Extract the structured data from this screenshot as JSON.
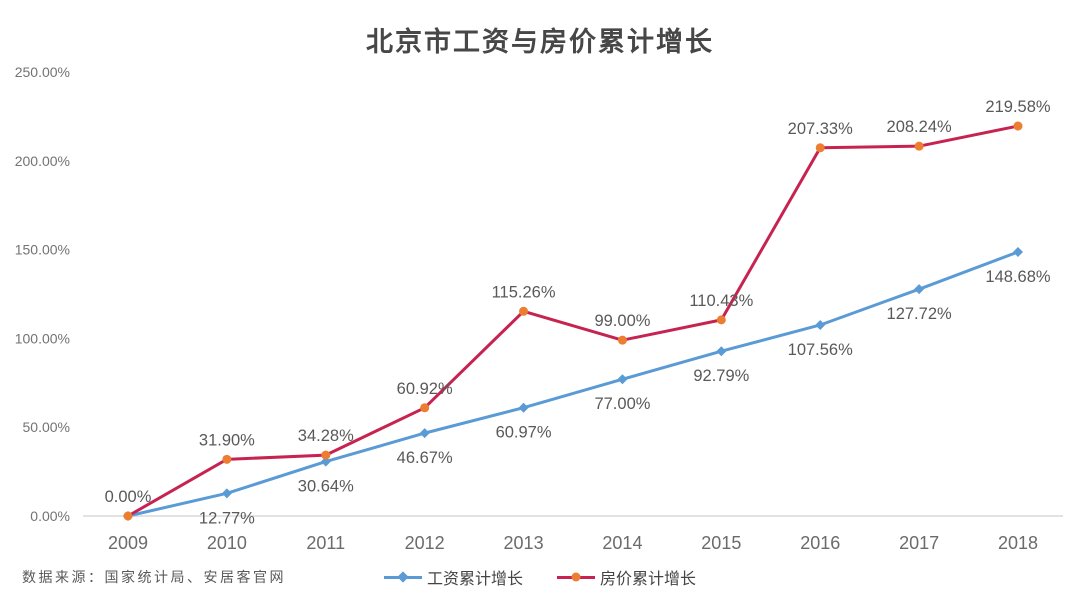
{
  "chart_data": {
    "type": "line",
    "title": "北京市工资与房价累计增长",
    "categories": [
      "2009",
      "2010",
      "2011",
      "2012",
      "2013",
      "2014",
      "2015",
      "2016",
      "2017",
      "2018"
    ],
    "series": [
      {
        "id": "wage",
        "name": "工资累计增长",
        "color": "#5B9BD5",
        "marker": "diamond",
        "label_side": "below",
        "values": [
          0,
          12.77,
          30.64,
          46.67,
          60.97,
          77.0,
          92.79,
          107.56,
          127.72,
          148.68
        ],
        "labels": [
          "",
          "12.77%",
          "30.64%",
          "46.67%",
          "60.97%",
          "77.00%",
          "92.79%",
          "107.56%",
          "127.72%",
          "148.68%"
        ]
      },
      {
        "id": "house-price",
        "name": "房价累计增长",
        "color": "#C72350",
        "marker": "circle",
        "marker_color": "#ED7D31",
        "label_side": "above",
        "values": [
          0,
          31.9,
          34.28,
          60.92,
          115.26,
          99.0,
          110.43,
          207.33,
          208.24,
          219.58
        ],
        "labels": [
          "0.00%",
          "31.90%",
          "34.28%",
          "60.92%",
          "115.26%",
          "99.00%",
          "110.43%",
          "207.33%",
          "208.24%",
          "219.58%"
        ]
      }
    ],
    "y_ticks": [
      "0.00%",
      "50.00%",
      "100.00%",
      "150.00%",
      "200.00%",
      "250.00%"
    ],
    "ylim": [
      0,
      250
    ],
    "grid": false,
    "legend_position": "bottom-center"
  },
  "source_note": "数据来源：国家统计局、安居客官网"
}
